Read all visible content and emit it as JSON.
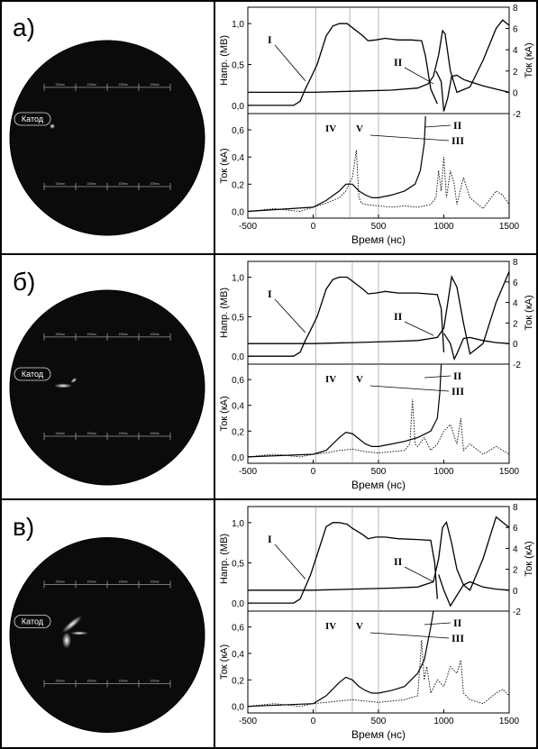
{
  "panels": [
    {
      "label": "а)",
      "photo": {
        "cathode_label": "Катод",
        "scale_labels": [
          "100нм",
          "100нм",
          "100нм",
          "100нм"
        ]
      },
      "markers": {
        "upper_I": "I",
        "upper_II": "II",
        "lower_II": "II",
        "lower_III": "III",
        "region_IV": "IV",
        "region_V": "V"
      }
    },
    {
      "label": "б)",
      "photo": {
        "cathode_label": "Катод",
        "scale_labels": [
          "100нм",
          "100нм",
          "100нм",
          "100нм"
        ]
      },
      "markers": {
        "upper_I": "I",
        "upper_II": "II",
        "lower_II": "II",
        "lower_III": "III",
        "region_IV": "IV",
        "region_V": "V"
      }
    },
    {
      "label": "в)",
      "photo": {
        "cathode_label": "Катод",
        "scale_labels": [
          "100нм",
          "100нм",
          "100нм",
          "100нм"
        ]
      },
      "markers": {
        "upper_I": "I",
        "upper_II": "II",
        "lower_II": "II",
        "lower_III": "III",
        "region_IV": "IV",
        "region_V": "V"
      }
    }
  ],
  "chart_data": [
    {
      "type": "line",
      "panel": "а)",
      "xlabel": "Время (нс)",
      "xlim": [
        -500,
        1500
      ],
      "x_ticks": [
        -500,
        0,
        500,
        1000,
        1500
      ],
      "upper": {
        "ylabel_left": "Напр. (МВ)",
        "ylim_left": [
          -0.1,
          1.2
        ],
        "y_ticks_left": [
          "0,0",
          "0,5",
          "1,0"
        ],
        "y_tick_values_left": [
          0,
          0.5,
          1.0
        ],
        "ylabel_right": "Ток (кА)",
        "ylim_right": [
          -2,
          8
        ],
        "y_ticks_right": [
          "-2",
          "0",
          "2",
          "4",
          "6",
          "8"
        ],
        "y_tick_values_right": [
          -2,
          0,
          2,
          4,
          6,
          8
        ],
        "vlines": [
          20,
          280,
          500
        ],
        "series": [
          {
            "marker": "I",
            "axis": "left",
            "x": [
              -500,
              -150,
              -100,
              -60,
              -20,
              30,
              100,
              150,
              200,
              260,
              300,
              380,
              420,
              480,
              550,
              650,
              750,
              830,
              860,
              900,
              950
            ],
            "y": [
              0.0,
              0.0,
              0.05,
              0.2,
              0.33,
              0.5,
              0.85,
              0.97,
              1.0,
              1.0,
              0.95,
              0.85,
              0.79,
              0.8,
              0.82,
              0.8,
              0.8,
              0.79,
              0.6,
              0.2,
              0.02
            ]
          },
          {
            "marker": "II",
            "axis": "right",
            "x": [
              -500,
              0,
              300,
              600,
              800,
              880,
              920,
              960,
              990,
              1010,
              1050,
              1100,
              1200,
              1300,
              1400,
              1450,
              1500
            ],
            "y": [
              0.0,
              0.0,
              0.1,
              0.2,
              0.4,
              0.8,
              1.5,
              3.5,
              5.8,
              5.5,
              2.0,
              0.0,
              0.5,
              3.0,
              6.0,
              6.8,
              6.3
            ]
          },
          {
            "axis": "right",
            "x": [
              940,
              980,
              1000,
              1030,
              1060,
              1100,
              1150,
              1200,
              1300,
              1400,
              1500
            ],
            "y": [
              2.0,
              1.0,
              -1.8,
              -0.5,
              1.5,
              1.6,
              1.2,
              1.0,
              0.6,
              0.3,
              0.0
            ]
          }
        ]
      },
      "lower": {
        "ylabel": "Ток (кА)",
        "ylim": [
          -0.05,
          0.72
        ],
        "y_ticks": [
          "0,0",
          "0,2",
          "0,4",
          "0,6"
        ],
        "y_tick_values": [
          0,
          0.2,
          0.4,
          0.6
        ],
        "vlines": [
          20,
          280,
          500
        ],
        "series": [
          {
            "marker": "II",
            "style": "solid",
            "x": [
              -500,
              0,
              100,
              200,
              250,
              300,
              350,
              400,
              450,
              500,
              600,
              700,
              780,
              820,
              850,
              860
            ],
            "y": [
              0.0,
              0.03,
              0.08,
              0.15,
              0.2,
              0.2,
              0.15,
              0.12,
              0.1,
              0.1,
              0.12,
              0.15,
              0.2,
              0.3,
              0.5,
              0.7
            ]
          },
          {
            "marker": "III",
            "style": "dotted",
            "x": [
              -500,
              -300,
              -100,
              0,
              100,
              200,
              250,
              300,
              330,
              350,
              370,
              400,
              500,
              600,
              700,
              800,
              900,
              940,
              960,
              980,
              1000,
              1020,
              1050,
              1080,
              1100,
              1150,
              1200,
              1300,
              1400,
              1450,
              1500
            ],
            "y": [
              0.0,
              0.02,
              0.0,
              0.03,
              0.06,
              0.1,
              0.15,
              0.25,
              0.45,
              0.1,
              0.06,
              0.05,
              0.04,
              0.03,
              0.04,
              0.03,
              0.05,
              0.1,
              0.3,
              0.15,
              0.4,
              0.1,
              0.3,
              0.2,
              0.05,
              0.25,
              0.1,
              0.02,
              0.15,
              0.12,
              0.05
            ]
          }
        ]
      }
    },
    {
      "type": "line",
      "panel": "б)",
      "xlabel": "Время (нс)",
      "xlim": [
        -500,
        1500
      ],
      "x_ticks": [
        -500,
        0,
        500,
        1000,
        1500
      ],
      "upper": {
        "ylabel_left": "Напр. (МВ)",
        "ylim_left": [
          -0.1,
          1.2
        ],
        "y_ticks_left": [
          "0,0",
          "0,5",
          "1,0"
        ],
        "y_tick_values_left": [
          0,
          0.5,
          1.0
        ],
        "ylabel_right": "Ток (кА)",
        "ylim_right": [
          -2,
          8
        ],
        "y_ticks_right": [
          "-2",
          "0",
          "2",
          "4",
          "6",
          "8"
        ],
        "y_tick_values_right": [
          -2,
          0,
          2,
          4,
          6,
          8
        ],
        "vlines": [
          20,
          300,
          500
        ],
        "series": [
          {
            "marker": "I",
            "axis": "left",
            "x": [
              -500,
              -150,
              -100,
              -60,
              -20,
              30,
              100,
              150,
              200,
              260,
              300,
              380,
              420,
              480,
              550,
              650,
              800,
              950,
              980,
              1000
            ],
            "y": [
              0.0,
              0.0,
              0.05,
              0.2,
              0.33,
              0.5,
              0.85,
              0.97,
              1.0,
              1.0,
              0.95,
              0.85,
              0.79,
              0.8,
              0.82,
              0.8,
              0.8,
              0.78,
              0.6,
              0.05
            ]
          },
          {
            "marker": "II",
            "axis": "right",
            "x": [
              -500,
              0,
              300,
              600,
              800,
              950,
              1000,
              1030,
              1060,
              1100,
              1150,
              1200,
              1300,
              1400,
              1500
            ],
            "y": [
              0.0,
              0.0,
              0.1,
              0.2,
              0.3,
              0.6,
              1.5,
              4.0,
              6.5,
              5.5,
              2.0,
              -1.0,
              0.0,
              4.0,
              7.0
            ]
          },
          {
            "axis": "right",
            "x": [
              1000,
              1050,
              1080,
              1100,
              1150,
              1200,
              1300,
              1400,
              1500
            ],
            "y": [
              1.0,
              0.0,
              -1.5,
              -1.0,
              0.5,
              0.6,
              0.3,
              0.1,
              0.0
            ]
          }
        ]
      },
      "lower": {
        "ylabel": "Ток (кА)",
        "ylim": [
          -0.05,
          0.72
        ],
        "y_ticks": [
          "0,0",
          "0,2",
          "0,4",
          "0,6"
        ],
        "y_tick_values": [
          0,
          0.2,
          0.4,
          0.6
        ],
        "vlines": [
          20,
          300,
          500
        ],
        "series": [
          {
            "marker": "II",
            "style": "solid",
            "x": [
              -500,
              0,
              100,
              200,
              250,
              300,
              350,
              400,
              450,
              500,
              600,
              700,
              800,
              900,
              950,
              970,
              980
            ],
            "y": [
              0.0,
              0.02,
              0.05,
              0.15,
              0.19,
              0.18,
              0.14,
              0.1,
              0.08,
              0.08,
              0.1,
              0.12,
              0.15,
              0.2,
              0.3,
              0.5,
              0.72
            ]
          },
          {
            "marker": "III",
            "style": "dotted",
            "x": [
              -500,
              -300,
              -100,
              0,
              100,
              200,
              300,
              400,
              500,
              600,
              700,
              740,
              760,
              780,
              800,
              850,
              900,
              950,
              1000,
              1050,
              1100,
              1130,
              1150,
              1200,
              1300,
              1400,
              1450,
              1500
            ],
            "y": [
              0.0,
              0.02,
              0.0,
              0.02,
              0.03,
              0.05,
              0.06,
              0.04,
              0.03,
              0.04,
              0.05,
              0.1,
              0.45,
              0.1,
              0.08,
              0.15,
              0.05,
              0.1,
              0.2,
              0.25,
              0.1,
              0.3,
              0.05,
              0.1,
              0.02,
              0.08,
              0.05,
              0.02
            ]
          }
        ]
      }
    },
    {
      "type": "line",
      "panel": "в)",
      "xlabel": "Время (нс)",
      "xlim": [
        -500,
        1500
      ],
      "x_ticks": [
        -500,
        0,
        500,
        1000,
        1500
      ],
      "upper": {
        "ylabel_left": "Напр. (МВ)",
        "ylim_left": [
          -0.1,
          1.2
        ],
        "y_ticks_left": [
          "0,0",
          "0,5",
          "1,0"
        ],
        "y_tick_values_left": [
          0,
          0.5,
          1.0
        ],
        "ylabel_right": "Ток (кА)",
        "ylim_right": [
          -2,
          8
        ],
        "y_ticks_right": [
          "-2",
          "0",
          "2",
          "4",
          "6",
          "8"
        ],
        "y_tick_values_right": [
          -2,
          0,
          2,
          4,
          6,
          8
        ],
        "vlines": [
          20,
          300,
          500
        ],
        "series": [
          {
            "marker": "I",
            "axis": "left",
            "x": [
              -500,
              -150,
              -100,
              -60,
              -20,
              30,
              100,
              150,
              200,
              260,
              300,
              380,
              420,
              480,
              550,
              650,
              800,
              900,
              930,
              950
            ],
            "y": [
              0.0,
              0.0,
              0.05,
              0.2,
              0.35,
              0.6,
              0.95,
              1.0,
              1.0,
              0.98,
              0.93,
              0.85,
              0.8,
              0.82,
              0.82,
              0.8,
              0.79,
              0.78,
              0.5,
              0.05
            ]
          },
          {
            "marker": "II",
            "axis": "right",
            "x": [
              -500,
              0,
              300,
              600,
              800,
              920,
              960,
              990,
              1020,
              1060,
              1100,
              1150,
              1200,
              1300,
              1400,
              1500
            ],
            "y": [
              0.0,
              0.0,
              0.1,
              0.2,
              0.3,
              0.8,
              3.0,
              6.0,
              6.5,
              4.5,
              2.0,
              0.5,
              0.0,
              3.0,
              7.0,
              6.0
            ]
          },
          {
            "axis": "right",
            "x": [
              960,
              1000,
              1050,
              1100,
              1150,
              1200,
              1300,
              1400,
              1500
            ],
            "y": [
              1.5,
              0.0,
              -1.5,
              -0.5,
              0.5,
              0.8,
              0.3,
              0.1,
              0.0
            ]
          }
        ]
      },
      "lower": {
        "ylabel": "Ток (кА)",
        "ylim": [
          -0.05,
          0.72
        ],
        "y_ticks": [
          "0,0",
          "0,2",
          "0,4",
          "0,6"
        ],
        "y_tick_values": [
          0,
          0.2,
          0.4,
          0.6
        ],
        "vlines": [
          20,
          300,
          500
        ],
        "series": [
          {
            "marker": "II",
            "style": "solid",
            "x": [
              -500,
              0,
              100,
              200,
              250,
              300,
              350,
              400,
              450,
              500,
              600,
              700,
              800,
              850,
              880,
              900,
              920
            ],
            "y": [
              0.0,
              0.02,
              0.08,
              0.18,
              0.22,
              0.2,
              0.15,
              0.12,
              0.1,
              0.1,
              0.12,
              0.15,
              0.25,
              0.35,
              0.5,
              0.6,
              0.72
            ]
          },
          {
            "marker": "III",
            "style": "dotted",
            "x": [
              -500,
              -300,
              -100,
              0,
              100,
              200,
              300,
              400,
              500,
              600,
              700,
              800,
              830,
              850,
              870,
              900,
              950,
              1000,
              1050,
              1100,
              1130,
              1150,
              1200,
              1300,
              1400,
              1450,
              1500
            ],
            "y": [
              0.0,
              0.02,
              0.0,
              0.02,
              0.03,
              0.04,
              0.05,
              0.04,
              0.03,
              0.04,
              0.05,
              0.08,
              0.5,
              0.2,
              0.3,
              0.1,
              0.2,
              0.15,
              0.3,
              0.25,
              0.35,
              0.1,
              0.05,
              0.02,
              0.1,
              0.13,
              0.08
            ]
          }
        ]
      }
    }
  ]
}
